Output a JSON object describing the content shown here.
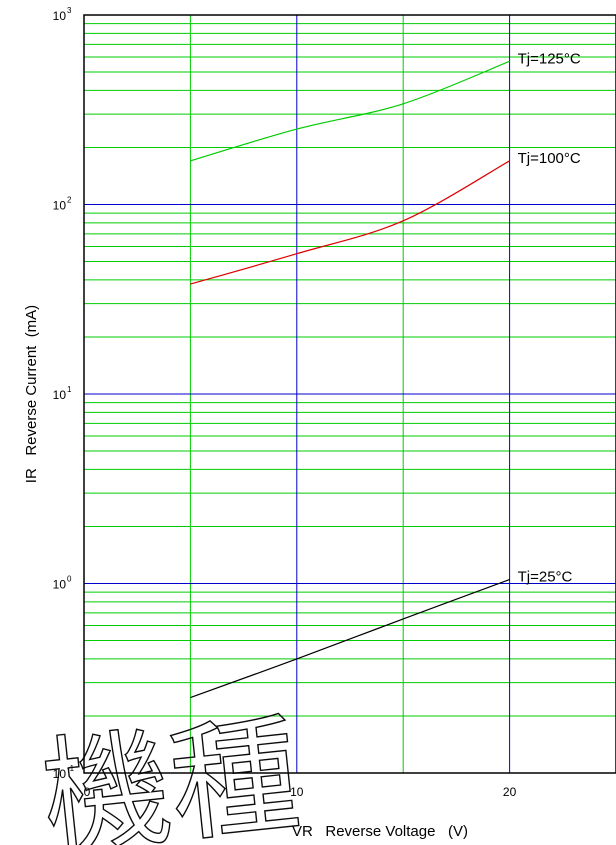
{
  "chart_data": {
    "type": "line",
    "title": "",
    "xlabel": "VR   Reverse Voltage   (V)",
    "ylabel": "IR   Reverse Current  (mA)",
    "x_scale": "linear",
    "y_scale": "log",
    "xlim": [
      0,
      25
    ],
    "ylim": [
      0.1,
      1000
    ],
    "grid": true,
    "x_ticks": [
      {
        "value": 0,
        "label": "0"
      },
      {
        "value": 10,
        "label": "10"
      },
      {
        "value": 20,
        "label": "20"
      }
    ],
    "y_ticks": [
      {
        "value": 0.1,
        "base": "10",
        "exp": "-1"
      },
      {
        "value": 1,
        "base": "10",
        "exp": "0"
      },
      {
        "value": 10,
        "base": "10",
        "exp": "1"
      },
      {
        "value": 100,
        "base": "10",
        "exp": "2"
      },
      {
        "value": 1000,
        "base": "10",
        "exp": "3"
      }
    ],
    "series": [
      {
        "name": "Tj=125°C",
        "color": "#00cc00",
        "x": [
          5,
          10,
          15,
          20
        ],
        "y": [
          170,
          250,
          340,
          570
        ]
      },
      {
        "name": "Tj=100°C",
        "color": "#dd0000",
        "x": [
          5,
          10,
          15,
          20
        ],
        "y": [
          38,
          55,
          82,
          170
        ]
      },
      {
        "name": "Tj=25°C",
        "color": "#000000",
        "x": [
          5,
          10,
          15,
          20
        ],
        "y": [
          0.25,
          0.4,
          0.65,
          1.05
        ]
      }
    ],
    "colors": {
      "major_grid": "#0000cc",
      "minor_grid": "#00cc00",
      "frame": "#000000"
    }
  },
  "watermark": {
    "text": "機種"
  }
}
